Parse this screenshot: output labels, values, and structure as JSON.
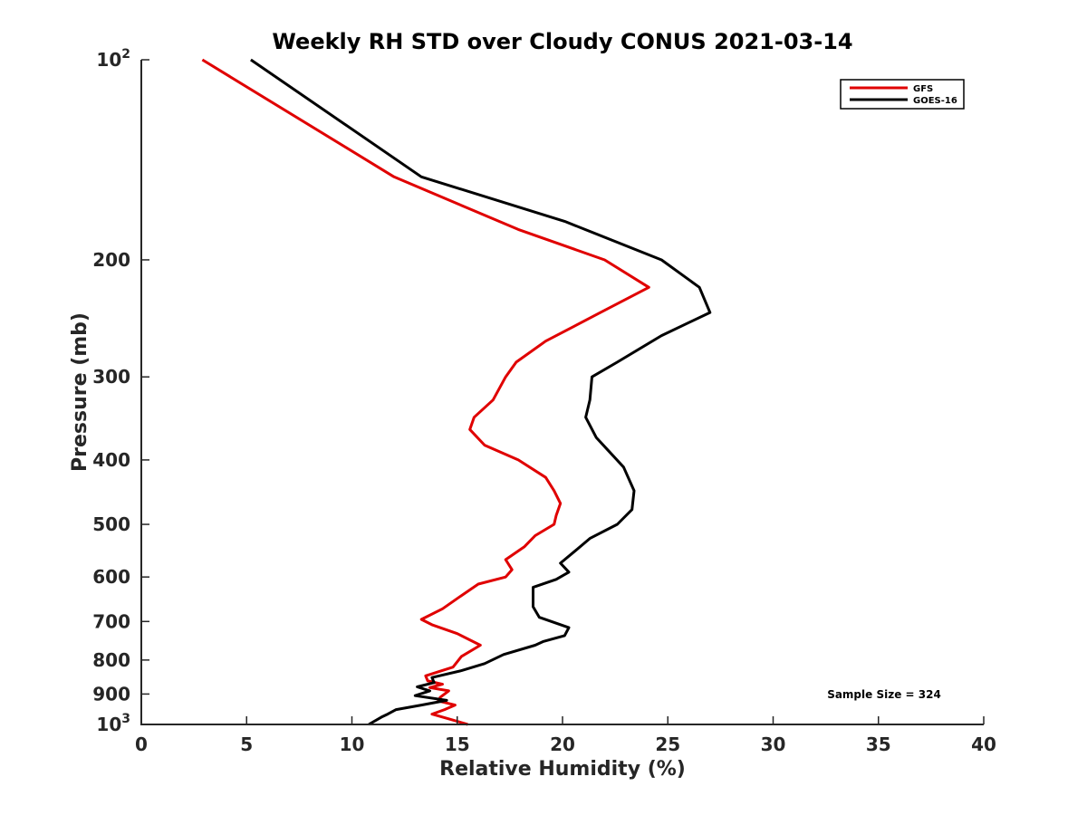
{
  "chart_data": {
    "type": "line",
    "title": "Weekly RH STD over Cloudy CONUS 2021-03-14",
    "xlabel": "Relative Humidity (%)",
    "ylabel": "Pressure (mb)",
    "xlim": [
      0,
      40
    ],
    "ylim": [
      1000,
      100
    ],
    "y_scale": "log",
    "y_reversed": true,
    "grid": false,
    "legend_position": "top-right",
    "x_ticks": [
      0,
      5,
      10,
      15,
      20,
      25,
      30,
      35,
      40
    ],
    "y_ticks": [
      {
        "value": 100,
        "label": "10",
        "exp": "2"
      },
      {
        "value": 200,
        "label": "200"
      },
      {
        "value": 300,
        "label": "300"
      },
      {
        "value": 400,
        "label": "400"
      },
      {
        "value": 500,
        "label": "500"
      },
      {
        "value": 600,
        "label": "600"
      },
      {
        "value": 700,
        "label": "700"
      },
      {
        "value": 800,
        "label": "800"
      },
      {
        "value": 900,
        "label": "900"
      },
      {
        "value": 1000,
        "label": "10",
        "exp": "3"
      }
    ],
    "annotation": "Sample Size = 324",
    "series": [
      {
        "name": "GFS",
        "color": "#e00000",
        "points": [
          [
            2.9,
            100
          ],
          [
            12.0,
            150
          ],
          [
            17.9,
            180
          ],
          [
            22.0,
            200
          ],
          [
            24.1,
            220
          ],
          [
            21.8,
            240
          ],
          [
            19.2,
            265
          ],
          [
            17.8,
            285
          ],
          [
            17.3,
            300
          ],
          [
            16.7,
            325
          ],
          [
            15.8,
            345
          ],
          [
            15.6,
            360
          ],
          [
            16.3,
            380
          ],
          [
            17.9,
            400
          ],
          [
            19.2,
            425
          ],
          [
            19.6,
            445
          ],
          [
            19.9,
            465
          ],
          [
            19.7,
            485
          ],
          [
            19.6,
            500
          ],
          [
            18.7,
            520
          ],
          [
            18.2,
            540
          ],
          [
            17.3,
            565
          ],
          [
            17.6,
            585
          ],
          [
            17.3,
            600
          ],
          [
            16.0,
            615
          ],
          [
            15.2,
            640
          ],
          [
            14.3,
            670
          ],
          [
            13.3,
            695
          ],
          [
            13.8,
            708
          ],
          [
            15.0,
            730
          ],
          [
            16.1,
            760
          ],
          [
            15.2,
            790
          ],
          [
            14.8,
            820
          ],
          [
            13.5,
            845
          ],
          [
            13.6,
            860
          ],
          [
            14.3,
            870
          ],
          [
            13.7,
            880
          ],
          [
            14.6,
            890
          ],
          [
            14.2,
            910
          ],
          [
            14.1,
            922
          ],
          [
            14.9,
            935
          ],
          [
            14.4,
            950
          ],
          [
            13.8,
            965
          ],
          [
            14.8,
            985
          ],
          [
            15.5,
            1000
          ]
        ]
      },
      {
        "name": "GOES-16",
        "color": "#000000",
        "points": [
          [
            5.2,
            100
          ],
          [
            13.3,
            150
          ],
          [
            20.1,
            175
          ],
          [
            24.7,
            200
          ],
          [
            26.5,
            220
          ],
          [
            27.0,
            240
          ],
          [
            24.7,
            260
          ],
          [
            22.6,
            285
          ],
          [
            21.4,
            300
          ],
          [
            21.3,
            325
          ],
          [
            21.1,
            345
          ],
          [
            21.6,
            370
          ],
          [
            22.1,
            385
          ],
          [
            22.9,
            410
          ],
          [
            23.4,
            445
          ],
          [
            23.3,
            475
          ],
          [
            22.6,
            500
          ],
          [
            21.3,
            525
          ],
          [
            20.6,
            548
          ],
          [
            19.9,
            572
          ],
          [
            20.3,
            590
          ],
          [
            19.7,
            605
          ],
          [
            18.6,
            622
          ],
          [
            18.6,
            650
          ],
          [
            18.6,
            665
          ],
          [
            18.9,
            690
          ],
          [
            20.3,
            715
          ],
          [
            20.1,
            735
          ],
          [
            19.1,
            750
          ],
          [
            18.7,
            760
          ],
          [
            17.2,
            785
          ],
          [
            16.3,
            810
          ],
          [
            15.2,
            830
          ],
          [
            13.8,
            850
          ],
          [
            13.9,
            865
          ],
          [
            13.1,
            878
          ],
          [
            13.7,
            890
          ],
          [
            13.0,
            905
          ],
          [
            14.5,
            920
          ],
          [
            13.3,
            935
          ],
          [
            12.1,
            950
          ],
          [
            11.7,
            965
          ],
          [
            11.4,
            975
          ],
          [
            10.8,
            1000
          ]
        ]
      }
    ]
  }
}
